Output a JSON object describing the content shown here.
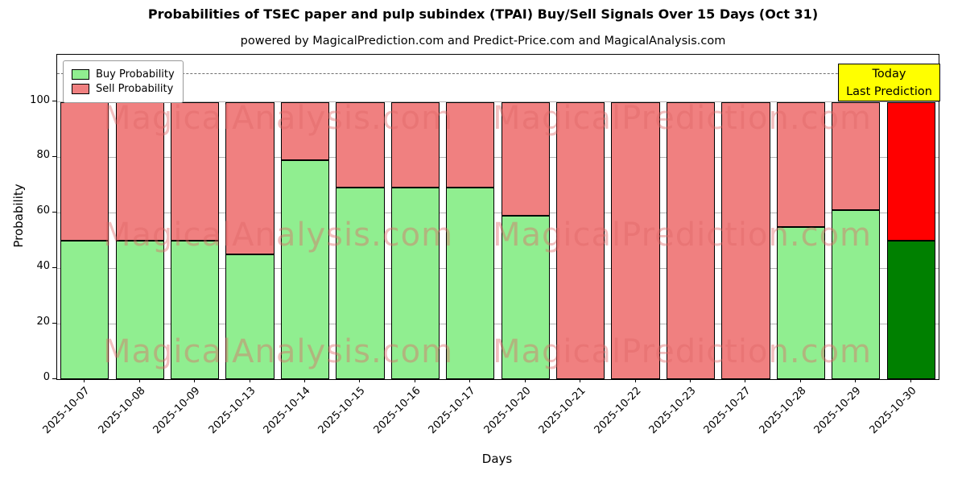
{
  "title": "Probabilities of TSEC paper and pulp subindex (TPAI) Buy/Sell Signals Over 15 Days (Oct 31)",
  "subtitle": "powered by MagicalPrediction.com and Predict-Price.com and MagicalAnalysis.com",
  "annotation": {
    "line1": "Today",
    "line2": "Last Prediction",
    "bg": "#ffff00",
    "border": "#000000"
  },
  "watermark": {
    "left": "MagicalAnalysis.com",
    "right": "MagicalPrediction.com"
  },
  "chart_data": {
    "type": "bar",
    "stacked": true,
    "title": "Probabilities of TSEC paper and pulp subindex (TPAI) Buy/Sell Signals Over 15 Days (Oct 31)",
    "xlabel": "Days",
    "ylabel": "Probability",
    "categories": [
      "2025-10-07",
      "2025-10-08",
      "2025-10-09",
      "2025-10-13",
      "2025-10-14",
      "2025-10-15",
      "2025-10-16",
      "2025-10-17",
      "2025-10-20",
      "2025-10-21",
      "2025-10-22",
      "2025-10-23",
      "2025-10-27",
      "2025-10-28",
      "2025-10-29",
      "2025-10-30"
    ],
    "series": [
      {
        "name": "Buy Probability",
        "color": "#90ee90",
        "color_today": "#008000",
        "values": [
          50,
          50,
          50,
          45,
          79,
          69,
          69,
          69,
          59,
          0,
          0,
          0,
          0,
          55,
          61,
          50
        ]
      },
      {
        "name": "Sell Probability",
        "color": "#f08080",
        "color_today": "#ff0000",
        "values": [
          50,
          50,
          50,
          55,
          21,
          31,
          31,
          31,
          41,
          100,
          100,
          100,
          100,
          45,
          39,
          50
        ]
      }
    ],
    "yticks": [
      0,
      20,
      40,
      60,
      80,
      100
    ],
    "ylim": [
      0,
      117
    ],
    "dashed_line_y": 110,
    "grid": true,
    "legend_position": "upper-left",
    "bar_edge_color": "#000000"
  }
}
